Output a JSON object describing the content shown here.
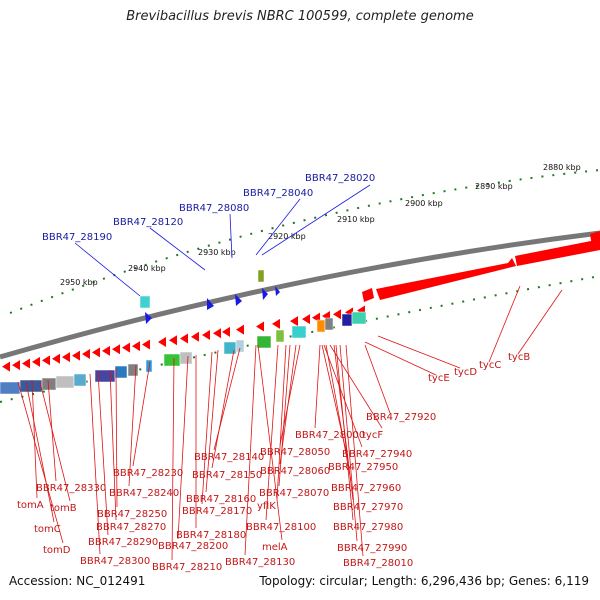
{
  "title": "Brevibacillus brevis NBRC 100599, complete genome",
  "accession_label": "Accession: NC_012491",
  "topology_label": "Topology: circular; Length: 6,296,436 bp; Genes: 6,119",
  "colors": {
    "backbone": "#777777",
    "forward_gene": "#ff0000",
    "reverse_gene": "#ff0000",
    "blue_label": "#1a1aa0",
    "red_label": "#c41616",
    "tick": "#1f7a1f"
  },
  "ticks": [
    {
      "label": "2880 kbp"
    },
    {
      "label": "2890 kbp"
    },
    {
      "label": "2900 kbp"
    },
    {
      "label": "2910 kbp"
    },
    {
      "label": "2920 kbp"
    },
    {
      "label": "2930 kbp"
    },
    {
      "label": "2940 kbp"
    },
    {
      "label": "2950 kbp"
    }
  ],
  "top_labels": [
    "BBR47_28020",
    "BBR47_28040",
    "BBR47_28080",
    "BBR47_28120",
    "BBR47_28190"
  ],
  "right_labels": [
    "tycB",
    "tycC",
    "tycD",
    "tycE",
    "BBR47_27920"
  ],
  "bottom_labels": [
    "BBR47_28000",
    "tycF",
    "BBR47_27940",
    "BBR47_27950",
    "BBR47_27960",
    "BBR47_27970",
    "BBR47_27980",
    "BBR47_27990",
    "BBR47_28010",
    "BBR47_28050",
    "BBR47_28060",
    "BBR47_28070",
    "yflK",
    "BBR47_28100",
    "melA",
    "BBR47_28130",
    "BBR47_28140",
    "BBR47_28150",
    "BBR47_28160",
    "BBR47_28170",
    "BBR47_28180",
    "BBR47_28200",
    "BBR47_28210",
    "BBR47_28230",
    "BBR47_28240",
    "BBR47_28250",
    "BBR47_28270",
    "BBR47_28290",
    "BBR47_28300",
    "BBR47_28330",
    "tomA",
    "tomB",
    "tomC",
    "tomD"
  ]
}
